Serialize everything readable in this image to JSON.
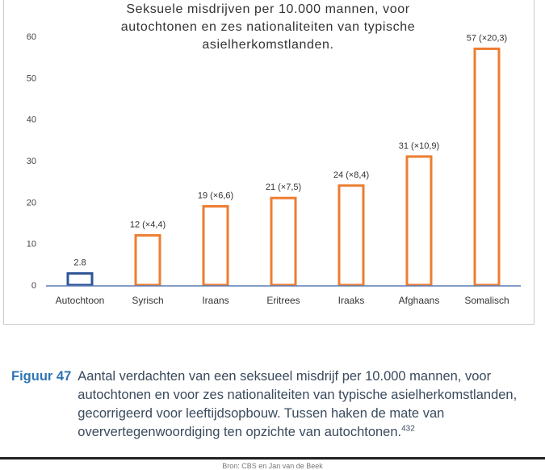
{
  "chart_data": {
    "type": "bar",
    "title_lines": [
      "Seksuele misdrijven per 10.000 mannen, voor",
      "autochtonen en zes nationaliteiten van typische",
      "asielherkomstlanden."
    ],
    "categories": [
      "Autochtoon",
      "Syrisch",
      "Iraans",
      "Eritrees",
      "Iraaks",
      "Afghaans",
      "Somalisch"
    ],
    "values": [
      2.8,
      12,
      19,
      21,
      24,
      31,
      57
    ],
    "data_labels": [
      "2.8",
      "12 (×4,4)",
      "19 (×6,6)",
      "21 (×7,5)",
      "24 (×8,4)",
      "31 (×10,9)",
      "57 (×20,3)"
    ],
    "y_ticks": [
      "0",
      "10",
      "20",
      "30",
      "40",
      "50",
      "60"
    ],
    "ylim": [
      0,
      60
    ],
    "grid": false,
    "legend": "none",
    "colors": {
      "autochtoon": "#2f5597",
      "others": "#ed7d31",
      "axis": "#5b7bb5"
    }
  },
  "caption": {
    "label": "Figuur 47",
    "text": "Aantal verdachten van een seksueel misdrijf per 10.000 mannen, voor autochtonen en voor zes nationaliteiten van typische asielherkomstlanden, gecorrigeerd voor leeftijdsopbouw. Tussen haken de mate van oververtegenwoordiging ten opzichte van autochtonen.",
    "footnote": "432"
  },
  "footer": {
    "text": "Bron: CBS en Jan van de Beek"
  }
}
